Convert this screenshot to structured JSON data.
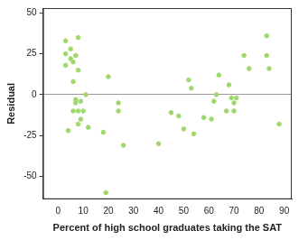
{
  "chart_data": {
    "type": "scatter",
    "x_label": "Percent of high school graduates taking the SAT",
    "y_label": "Residual",
    "color": "#9fd86a",
    "marker": "circle",
    "grid": false,
    "xlim": [
      -6,
      93
    ],
    "xticks": [
      0,
      10,
      20,
      30,
      40,
      50,
      60,
      70,
      80,
      90
    ],
    "ylim": [
      -64,
      53
    ],
    "yticks": [
      -50,
      -25,
      0,
      25,
      50
    ],
    "x": [
      3,
      3,
      3,
      4,
      5,
      5,
      6,
      6,
      6,
      7,
      7,
      7,
      8,
      8,
      8,
      8,
      9,
      9,
      10,
      11,
      12,
      18,
      19,
      20,
      24,
      24,
      26,
      40,
      45,
      48,
      50,
      52,
      53,
      54,
      58,
      61,
      62,
      63,
      64,
      67,
      68,
      69,
      70,
      70,
      71,
      74,
      76,
      83,
      83,
      84,
      88
    ],
    "values": [
      33,
      25,
      18,
      -22,
      22,
      28,
      20,
      8,
      -10,
      24,
      -3,
      -5,
      -18,
      -10,
      35,
      15,
      -4,
      -15,
      -10,
      0,
      -20,
      -23,
      -60,
      11,
      -5,
      -10,
      -31,
      -30,
      -11,
      -13,
      -21,
      9,
      4,
      -24,
      -14,
      -15,
      -4,
      0,
      12,
      -10,
      6,
      -2,
      -5,
      -10,
      -2,
      24,
      16,
      36,
      24,
      16,
      -18
    ]
  }
}
